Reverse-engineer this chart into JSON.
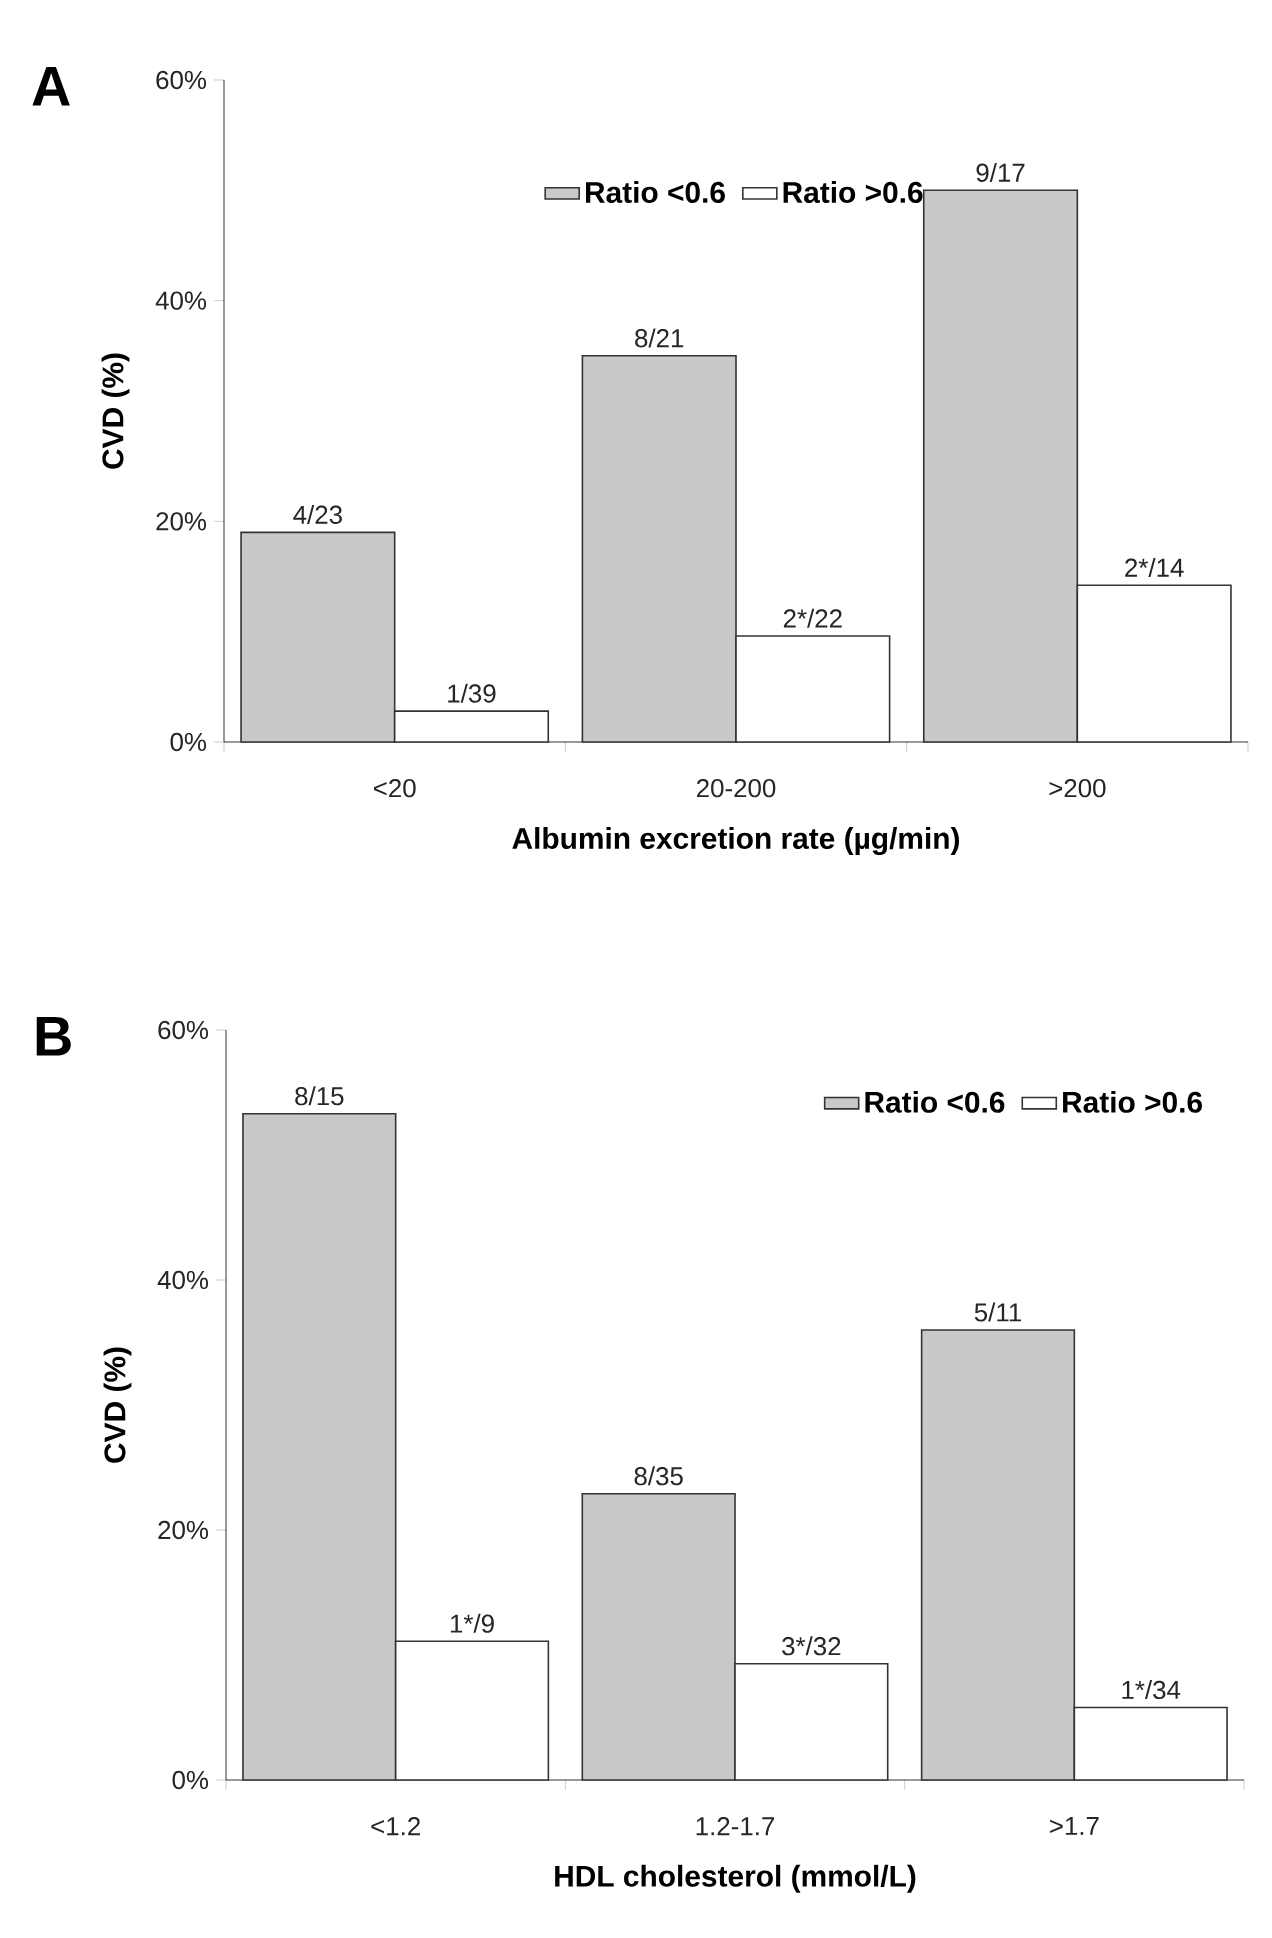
{
  "chart_data": [
    {
      "type": "bar",
      "title": "A",
      "xlabel": "Albumin excretion rate (µg/min)",
      "ylabel": "CVD (%)",
      "categories": [
        "<20",
        "20-200",
        ">200"
      ],
      "series": [
        {
          "name": "Ratio <0.6",
          "color": "#c8c9cb",
          "values": [
            19,
            35,
            50
          ]
        },
        {
          "name": "Ratio >0.6",
          "color": "#ffffff",
          "values": [
            2.8,
            9.6,
            14.2
          ]
        }
      ],
      "annotations": [
        {
          "text": "4/23",
          "x": "<20",
          "y": 19
        },
        {
          "text": "1/39",
          "x": "<20",
          "y": 2.8
        },
        {
          "text": "8/21",
          "x": "20-200",
          "y": 35
        },
        {
          "text": "2*/22",
          "x": "20-200",
          "y": 9.6
        },
        {
          "text": "9/17",
          "x": ">200",
          "y": 50
        },
        {
          "text": "2*/14",
          "x": ">200",
          "y": 14.2
        }
      ],
      "ylim": [
        0,
        60
      ],
      "yticks": [
        {
          "value": 0,
          "label": "0%"
        },
        {
          "value": 20,
          "label": "20%"
        },
        {
          "value": 40,
          "label": "40%"
        },
        {
          "value": 60,
          "label": "60%"
        }
      ],
      "legend": "top"
    },
    {
      "type": "bar",
      "title": "B",
      "xlabel": "HDL cholesterol (mmol/L)",
      "ylabel": "CVD (%)",
      "categories": [
        "<1.2",
        "1.2-1.7",
        ">1.7"
      ],
      "series": [
        {
          "name": "Ratio <0.6",
          "color": "#c8c9cb",
          "values": [
            53.3,
            22.9,
            36.0
          ]
        },
        {
          "name": "Ratio >0.6",
          "color": "#ffffff",
          "values": [
            11.1,
            9.3,
            5.8
          ]
        }
      ],
      "annotations": [
        {
          "text": "8/15",
          "x": "<1.2",
          "y": 53.3
        },
        {
          "text": "1*/9",
          "x": "<1.2",
          "y": 11.1
        },
        {
          "text": "8/35",
          "x": "1.2-1.7",
          "y": 22.9
        },
        {
          "text": "3*/32",
          "x": "1.2-1.7",
          "y": 9.3
        },
        {
          "text": "5/11",
          "x": ">1.7",
          "y": 36.0
        },
        {
          "text": "1*/34",
          "x": ">1.7",
          "y": 5.8
        }
      ],
      "ylim": [
        0,
        60
      ],
      "yticks": [
        {
          "value": 0,
          "label": "0%"
        },
        {
          "value": 20,
          "label": "20%"
        },
        {
          "value": 40,
          "label": "40%"
        },
        {
          "value": 60,
          "label": "60%"
        }
      ],
      "legend": "top right"
    }
  ]
}
